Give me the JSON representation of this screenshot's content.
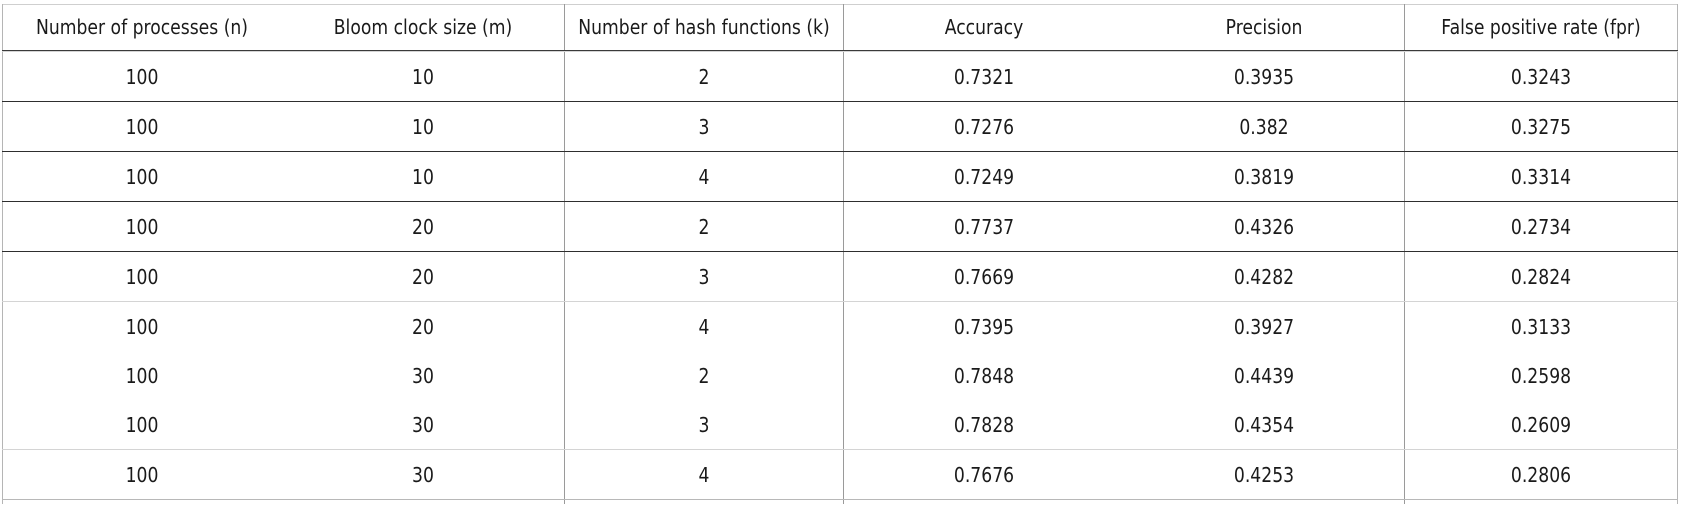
{
  "table": {
    "headers": [
      "Number of processes (n)",
      "Bloom clock size (m)",
      "Number of hash functions (k)",
      "Accuracy",
      "Precision",
      "False positive rate (fpr)"
    ],
    "rows": [
      [
        "100",
        "10",
        "2",
        "0.7321",
        "0.3935",
        "0.3243"
      ],
      [
        "100",
        "10",
        "3",
        "0.7276",
        "0.382",
        "0.3275"
      ],
      [
        "100",
        "10",
        "4",
        "0.7249",
        "0.3819",
        "0.3314"
      ],
      [
        "100",
        "20",
        "2",
        "0.7737",
        "0.4326",
        "0.2734"
      ],
      [
        "100",
        "20",
        "3",
        "0.7669",
        "0.4282",
        "0.2824"
      ],
      [
        "100",
        "20",
        "4",
        "0.7395",
        "0.3927",
        "0.3133"
      ],
      [
        "100",
        "30",
        "2",
        "0.7848",
        "0.4439",
        "0.2598"
      ],
      [
        "100",
        "30",
        "3",
        "0.7828",
        "0.4354",
        "0.2609"
      ],
      [
        "100",
        "30",
        "4",
        "0.7676",
        "0.4253",
        "0.2806"
      ]
    ]
  }
}
